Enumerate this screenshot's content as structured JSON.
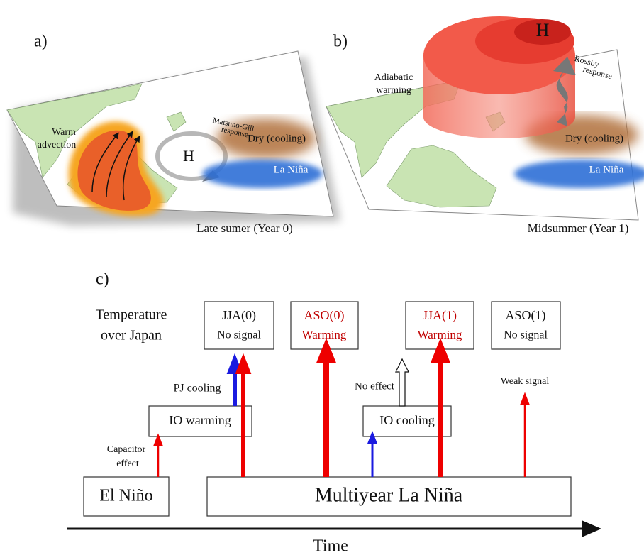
{
  "panel_a": {
    "label": "a)",
    "gill": [
      "Matsuno-Gill",
      "response"
    ],
    "high": "H",
    "warm_advection": [
      "Warm",
      "advection"
    ],
    "dry": "Dry (cooling)",
    "la_nina": "La Niña",
    "caption": "Late sumer (Year 0)"
  },
  "panel_b": {
    "label": "b)",
    "high": "H",
    "rossby": [
      "Rossby",
      "response"
    ],
    "adiabatic": [
      "Adiabatic",
      "warming"
    ],
    "dry": "Dry (cooling)",
    "la_nina": "La Niña",
    "caption": "Midsummer (Year 1)"
  },
  "panel_c": {
    "label": "c)",
    "temperature": [
      "Temperature",
      "over Japan"
    ],
    "boxes": [
      {
        "season": "JJA(0)",
        "signal": "No signal"
      },
      {
        "season": "ASO(0)",
        "signal": "Warming"
      },
      {
        "season": "JJA(1)",
        "signal": "Warming"
      },
      {
        "season": "ASO(1)",
        "signal": "No signal"
      }
    ],
    "pj_cooling": "PJ cooling",
    "io_warming": "IO warming",
    "capacitor": [
      "Capacitor",
      "effect"
    ],
    "no_effect": "No effect",
    "io_cooling": "IO cooling",
    "weak_signal": "Weak signal",
    "el_nino": "El Niño",
    "la_nina": "Multiyear La Niña",
    "time": "Time"
  }
}
